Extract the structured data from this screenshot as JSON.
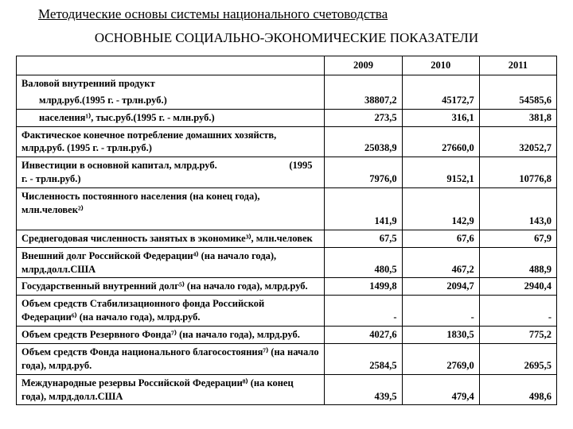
{
  "supertitle": "Методические основы системы национального счетоводства",
  "title": "ОСНОВНЫЕ СОЦИАЛЬНО-ЭКОНОМИЧЕСКИЕ ПОКАЗАТЕЛИ",
  "table": {
    "columns": [
      "",
      "2009",
      "2010",
      "2011"
    ],
    "rows": [
      {
        "label": "Валовой внутренний продукт",
        "v": [
          "",
          "",
          ""
        ],
        "sep": false,
        "indent": 0
      },
      {
        "label": "млрд.руб.(1995 г. - трлн.руб.)",
        "v": [
          "38807,2",
          "45172,7",
          "54585,6"
        ],
        "sep": true,
        "indent": 1
      },
      {
        "label": "населения¹⁾, тыс.руб.(1995 г. - млн.руб.)",
        "v": [
          "273,5",
          "316,1",
          "381,8"
        ],
        "sep": true,
        "indent": 1
      },
      {
        "label": "Фактическое конечное потребление домашних хозяйств, млрд.руб. (1995 г. - трлн.руб.)",
        "v": [
          "25038,9",
          "27660,0",
          "32052,7"
        ],
        "sep": true,
        "indent": 0
      },
      {
        "label": "Инвестиции в основной капитал, млрд.руб.                             (1995 г. - трлн.руб.)",
        "v": [
          "7976,0",
          "9152,1",
          "10776,8"
        ],
        "sep": true,
        "indent": 0
      },
      {
        "label": "Численность постоянного населения (на конец года), млн.человек²⁾",
        "v": [
          "141,9",
          "142,9",
          "143,0"
        ],
        "sep": true,
        "indent": 0,
        "space_before_vals": true
      },
      {
        "label": "Среднегодовая численность занятых в экономике³⁾, млн.человек",
        "v": [
          "67,5",
          "67,6",
          "67,9"
        ],
        "sep": true,
        "indent": 0
      },
      {
        "label": "Внешний долг Российской Федерации⁴⁾ (на начало года), млрд.долл.США",
        "v": [
          "480,5",
          "467,2",
          "488,9"
        ],
        "sep": true,
        "indent": 0
      },
      {
        "label": "Государственный внутренний долг⁵⁾ (на начало года), млрд.руб.",
        "v": [
          "1499,8",
          "2094,7",
          "2940,4"
        ],
        "sep": true,
        "indent": 0
      },
      {
        "label": "Объем средств Стабилизационного фонда Российской Федерации⁶⁾ (на начало года), млрд.руб.",
        "v": [
          "-",
          "-",
          "-"
        ],
        "sep": true,
        "indent": 0
      },
      {
        "label": "Объем средств Резервного Фонда⁷⁾ (на начало года), млрд.руб.",
        "v": [
          "4027,6",
          "1830,5",
          "775,2"
        ],
        "sep": true,
        "indent": 0
      },
      {
        "label": "Объем средств Фонда национального благосостояния⁷⁾ (на начало года), млрд.руб.",
        "v": [
          "2584,5",
          "2769,0",
          "2695,5"
        ],
        "sep": true,
        "indent": 0
      },
      {
        "label": "Международные резервы Российской Федерации⁸⁾ (на конец года), млрд.долл.США",
        "v": [
          "439,5",
          "479,4",
          "498,6"
        ],
        "sep": true,
        "indent": 0,
        "last": true
      }
    ]
  }
}
